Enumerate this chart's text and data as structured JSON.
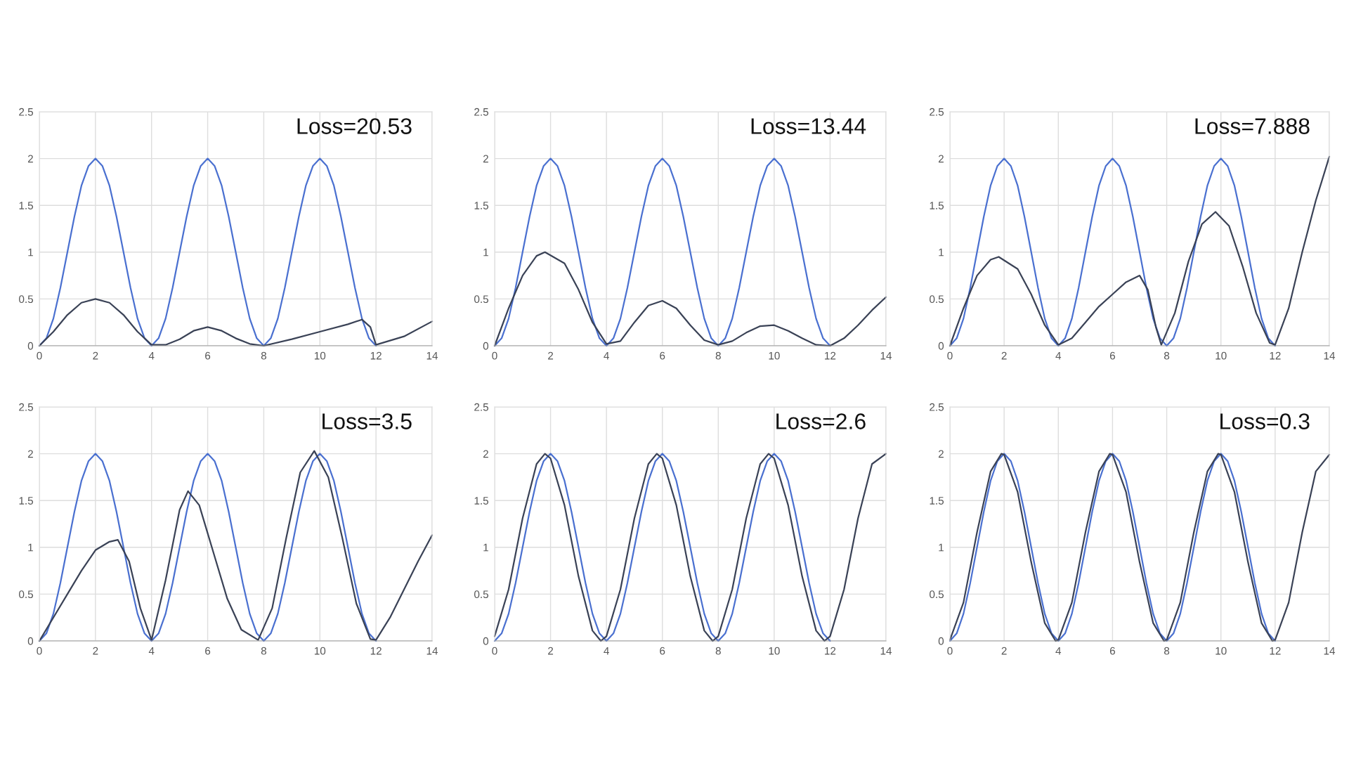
{
  "chart_data": [
    {
      "type": "line",
      "xlim": [
        0,
        14
      ],
      "ylim": [
        0,
        2.5
      ],
      "xticks": [
        0,
        2,
        4,
        6,
        8,
        10,
        12,
        14
      ],
      "yticks": [
        0,
        0.5,
        1,
        1.5,
        2,
        2.5
      ],
      "grid": true,
      "annotations": [
        "Loss=20.53"
      ],
      "series": [
        {
          "color": "#4a70d0",
          "x": [
            0,
            0.25,
            0.5,
            0.75,
            1,
            1.25,
            1.5,
            1.75,
            2,
            2.25,
            2.5,
            2.75,
            3,
            3.25,
            3.5,
            3.75,
            4,
            4.25,
            4.5,
            4.75,
            5,
            5.25,
            5.5,
            5.75,
            6,
            6.25,
            6.5,
            6.75,
            7,
            7.25,
            7.5,
            7.75,
            8,
            8.25,
            8.5,
            8.75,
            9,
            9.25,
            9.5,
            9.75,
            10,
            10.25,
            10.5,
            10.75,
            11,
            11.25,
            11.5,
            11.75,
            12
          ],
          "values": [
            0,
            0.08,
            0.29,
            0.62,
            1,
            1.38,
            1.71,
            1.92,
            2,
            1.92,
            1.71,
            1.38,
            1,
            0.62,
            0.29,
            0.08,
            0,
            0.08,
            0.29,
            0.62,
            1,
            1.38,
            1.71,
            1.92,
            2,
            1.92,
            1.71,
            1.38,
            1,
            0.62,
            0.29,
            0.08,
            0,
            0.08,
            0.29,
            0.62,
            1,
            1.38,
            1.71,
            1.92,
            2,
            1.92,
            1.71,
            1.38,
            1,
            0.62,
            0.29,
            0.08,
            0
          ]
        },
        {
          "color": "#3a4256",
          "x": [
            0,
            0.5,
            1,
            1.5,
            2,
            2.5,
            3,
            3.5,
            4,
            4.5,
            5,
            5.5,
            6,
            6.5,
            7,
            7.5,
            8,
            9,
            10,
            11,
            11.5,
            11.8,
            12,
            13,
            14
          ],
          "values": [
            0,
            0.15,
            0.33,
            0.46,
            0.5,
            0.46,
            0.33,
            0.15,
            0.01,
            0.01,
            0.07,
            0.16,
            0.2,
            0.16,
            0.08,
            0.02,
            0,
            0.07,
            0.15,
            0.23,
            0.28,
            0.2,
            0.01,
            0.1,
            0.26
          ]
        }
      ]
    },
    {
      "type": "line",
      "xlim": [
        0,
        14
      ],
      "ylim": [
        0,
        2.5
      ],
      "xticks": [
        0,
        2,
        4,
        6,
        8,
        10,
        12,
        14
      ],
      "yticks": [
        0,
        0.5,
        1,
        1.5,
        2,
        2.5
      ],
      "grid": true,
      "annotations": [
        "Loss=13.44"
      ],
      "series": [
        {
          "color": "#4a70d0",
          "x": [
            0,
            0.25,
            0.5,
            0.75,
            1,
            1.25,
            1.5,
            1.75,
            2,
            2.25,
            2.5,
            2.75,
            3,
            3.25,
            3.5,
            3.75,
            4,
            4.25,
            4.5,
            4.75,
            5,
            5.25,
            5.5,
            5.75,
            6,
            6.25,
            6.5,
            6.75,
            7,
            7.25,
            7.5,
            7.75,
            8,
            8.25,
            8.5,
            8.75,
            9,
            9.25,
            9.5,
            9.75,
            10,
            10.25,
            10.5,
            10.75,
            11,
            11.25,
            11.5,
            11.75,
            12
          ],
          "values": [
            0,
            0.08,
            0.29,
            0.62,
            1,
            1.38,
            1.71,
            1.92,
            2,
            1.92,
            1.71,
            1.38,
            1,
            0.62,
            0.29,
            0.08,
            0,
            0.08,
            0.29,
            0.62,
            1,
            1.38,
            1.71,
            1.92,
            2,
            1.92,
            1.71,
            1.38,
            1,
            0.62,
            0.29,
            0.08,
            0,
            0.08,
            0.29,
            0.62,
            1,
            1.38,
            1.71,
            1.92,
            2,
            1.92,
            1.71,
            1.38,
            1,
            0.62,
            0.29,
            0.08,
            0
          ]
        },
        {
          "color": "#3a4256",
          "x": [
            0,
            0.5,
            1,
            1.5,
            1.8,
            2.5,
            3,
            3.5,
            4,
            4.5,
            5,
            5.5,
            6,
            6.5,
            7,
            7.5,
            8,
            8.5,
            9,
            9.5,
            10,
            10.5,
            11,
            11.5,
            12,
            12.5,
            13,
            13.5,
            14
          ],
          "values": [
            0,
            0.4,
            0.75,
            0.96,
            1,
            0.88,
            0.6,
            0.25,
            0.02,
            0.05,
            0.25,
            0.43,
            0.48,
            0.4,
            0.22,
            0.06,
            0.01,
            0.05,
            0.14,
            0.21,
            0.22,
            0.16,
            0.08,
            0.01,
            0,
            0.08,
            0.22,
            0.38,
            0.52
          ]
        }
      ]
    },
    {
      "type": "line",
      "xlim": [
        0,
        14
      ],
      "ylim": [
        0,
        2.5
      ],
      "xticks": [
        0,
        2,
        4,
        6,
        8,
        10,
        12,
        14
      ],
      "yticks": [
        0,
        0.5,
        1,
        1.5,
        2,
        2.5
      ],
      "grid": true,
      "annotations": [
        "Loss=7.888"
      ],
      "series": [
        {
          "color": "#4a70d0",
          "x": [
            0,
            0.25,
            0.5,
            0.75,
            1,
            1.25,
            1.5,
            1.75,
            2,
            2.25,
            2.5,
            2.75,
            3,
            3.25,
            3.5,
            3.75,
            4,
            4.25,
            4.5,
            4.75,
            5,
            5.25,
            5.5,
            5.75,
            6,
            6.25,
            6.5,
            6.75,
            7,
            7.25,
            7.5,
            7.75,
            8,
            8.25,
            8.5,
            8.75,
            9,
            9.25,
            9.5,
            9.75,
            10,
            10.25,
            10.5,
            10.75,
            11,
            11.25,
            11.5,
            11.75,
            12
          ],
          "values": [
            0,
            0.08,
            0.29,
            0.62,
            1,
            1.38,
            1.71,
            1.92,
            2,
            1.92,
            1.71,
            1.38,
            1,
            0.62,
            0.29,
            0.08,
            0,
            0.08,
            0.29,
            0.62,
            1,
            1.38,
            1.71,
            1.92,
            2,
            1.92,
            1.71,
            1.38,
            1,
            0.62,
            0.29,
            0.08,
            0,
            0.08,
            0.29,
            0.62,
            1,
            1.38,
            1.71,
            1.92,
            2,
            1.92,
            1.71,
            1.38,
            1,
            0.62,
            0.29,
            0.08,
            0
          ]
        },
        {
          "color": "#3a4256",
          "x": [
            0,
            0.5,
            1,
            1.5,
            1.8,
            2.5,
            3,
            3.5,
            4,
            4.5,
            5,
            5.5,
            6,
            6.5,
            7,
            7.3,
            7.6,
            7.8,
            8.3,
            8.8,
            9.3,
            9.8,
            10.3,
            10.8,
            11.3,
            11.8,
            12,
            12.5,
            13,
            13.5,
            14
          ],
          "values": [
            0,
            0.4,
            0.75,
            0.92,
            0.95,
            0.82,
            0.55,
            0.22,
            0.01,
            0.08,
            0.25,
            0.42,
            0.55,
            0.68,
            0.75,
            0.6,
            0.2,
            0.01,
            0.35,
            0.9,
            1.3,
            1.43,
            1.28,
            0.85,
            0.35,
            0.03,
            0.01,
            0.4,
            1.0,
            1.55,
            2.02
          ]
        }
      ]
    },
    {
      "type": "line",
      "xlim": [
        0,
        14
      ],
      "ylim": [
        0,
        2.5
      ],
      "xticks": [
        0,
        2,
        4,
        6,
        8,
        10,
        12,
        14
      ],
      "yticks": [
        0,
        0.5,
        1,
        1.5,
        2,
        2.5
      ],
      "grid": true,
      "annotations": [
        "Loss=3.5"
      ],
      "series": [
        {
          "color": "#4a70d0",
          "x": [
            0,
            0.25,
            0.5,
            0.75,
            1,
            1.25,
            1.5,
            1.75,
            2,
            2.25,
            2.5,
            2.75,
            3,
            3.25,
            3.5,
            3.75,
            4,
            4.25,
            4.5,
            4.75,
            5,
            5.25,
            5.5,
            5.75,
            6,
            6.25,
            6.5,
            6.75,
            7,
            7.25,
            7.5,
            7.75,
            8,
            8.25,
            8.5,
            8.75,
            9,
            9.25,
            9.5,
            9.75,
            10,
            10.25,
            10.5,
            10.75,
            11,
            11.25,
            11.5,
            11.75,
            12
          ],
          "values": [
            0,
            0.08,
            0.29,
            0.62,
            1,
            1.38,
            1.71,
            1.92,
            2,
            1.92,
            1.71,
            1.38,
            1,
            0.62,
            0.29,
            0.08,
            0,
            0.08,
            0.29,
            0.62,
            1,
            1.38,
            1.71,
            1.92,
            2,
            1.92,
            1.71,
            1.38,
            1,
            0.62,
            0.29,
            0.08,
            0,
            0.08,
            0.29,
            0.62,
            1,
            1.38,
            1.71,
            1.92,
            2,
            1.92,
            1.71,
            1.38,
            1,
            0.62,
            0.29,
            0.08,
            0
          ]
        },
        {
          "color": "#3a4256",
          "x": [
            0,
            0.5,
            1,
            1.5,
            2,
            2.5,
            2.8,
            3.2,
            3.6,
            4,
            4.5,
            5,
            5.3,
            5.7,
            6.2,
            6.7,
            7.2,
            7.8,
            8.3,
            8.8,
            9.3,
            9.8,
            10.3,
            10.8,
            11.3,
            11.8,
            12,
            12.5,
            13,
            13.5,
            14
          ],
          "values": [
            0,
            0.25,
            0.5,
            0.75,
            0.97,
            1.06,
            1.08,
            0.85,
            0.35,
            0.01,
            0.65,
            1.4,
            1.6,
            1.45,
            0.95,
            0.45,
            0.12,
            0.01,
            0.35,
            1.1,
            1.8,
            2.03,
            1.75,
            1.1,
            0.4,
            0.02,
            0.01,
            0.25,
            0.55,
            0.85,
            1.13
          ]
        }
      ]
    },
    {
      "type": "line",
      "xlim": [
        0,
        14
      ],
      "ylim": [
        0,
        2.5
      ],
      "xticks": [
        0,
        2,
        4,
        6,
        8,
        10,
        12,
        14
      ],
      "yticks": [
        0,
        0.5,
        1,
        1.5,
        2,
        2.5
      ],
      "grid": true,
      "annotations": [
        "Loss=2.6"
      ],
      "series": [
        {
          "color": "#4a70d0",
          "x": [
            0,
            0.25,
            0.5,
            0.75,
            1,
            1.25,
            1.5,
            1.75,
            2,
            2.25,
            2.5,
            2.75,
            3,
            3.25,
            3.5,
            3.75,
            4,
            4.25,
            4.5,
            4.75,
            5,
            5.25,
            5.5,
            5.75,
            6,
            6.25,
            6.5,
            6.75,
            7,
            7.25,
            7.5,
            7.75,
            8,
            8.25,
            8.5,
            8.75,
            9,
            9.25,
            9.5,
            9.75,
            10,
            10.25,
            10.5,
            10.75,
            11,
            11.25,
            11.5,
            11.75,
            12
          ],
          "values": [
            0,
            0.08,
            0.29,
            0.62,
            1,
            1.38,
            1.71,
            1.92,
            2,
            1.92,
            1.71,
            1.38,
            1,
            0.62,
            0.29,
            0.08,
            0,
            0.08,
            0.29,
            0.62,
            1,
            1.38,
            1.71,
            1.92,
            2,
            1.92,
            1.71,
            1.38,
            1,
            0.62,
            0.29,
            0.08,
            0,
            0.08,
            0.29,
            0.62,
            1,
            1.38,
            1.71,
            1.92,
            2,
            1.92,
            1.71,
            1.38,
            1,
            0.62,
            0.29,
            0.08,
            0
          ]
        },
        {
          "color": "#3a4256",
          "x": [
            0,
            0.5,
            1,
            1.5,
            1.8,
            2,
            2.5,
            3,
            3.5,
            3.8,
            4,
            4.5,
            5,
            5.5,
            5.8,
            6,
            6.5,
            7,
            7.5,
            7.8,
            8,
            8.5,
            9,
            9.5,
            9.8,
            10,
            10.5,
            11,
            11.5,
            11.8,
            12,
            12.5,
            13,
            13.5,
            14
          ],
          "values": [
            0.05,
            0.55,
            1.31,
            1.89,
            2,
            1.95,
            1.45,
            0.69,
            0.11,
            0,
            0.05,
            0.55,
            1.31,
            1.89,
            2,
            1.95,
            1.45,
            0.69,
            0.11,
            0,
            0.05,
            0.55,
            1.31,
            1.89,
            2,
            1.95,
            1.45,
            0.69,
            0.11,
            0,
            0.05,
            0.55,
            1.31,
            1.89,
            2
          ]
        }
      ]
    },
    {
      "type": "line",
      "xlim": [
        0,
        14
      ],
      "ylim": [
        0,
        2.5
      ],
      "xticks": [
        0,
        2,
        4,
        6,
        8,
        10,
        12,
        14
      ],
      "yticks": [
        0,
        0.5,
        1,
        1.5,
        2,
        2.5
      ],
      "grid": true,
      "annotations": [
        "Loss=0.3"
      ],
      "series": [
        {
          "color": "#4a70d0",
          "x": [
            0,
            0.25,
            0.5,
            0.75,
            1,
            1.25,
            1.5,
            1.75,
            2,
            2.25,
            2.5,
            2.75,
            3,
            3.25,
            3.5,
            3.75,
            4,
            4.25,
            4.5,
            4.75,
            5,
            5.25,
            5.5,
            5.75,
            6,
            6.25,
            6.5,
            6.75,
            7,
            7.25,
            7.5,
            7.75,
            8,
            8.25,
            8.5,
            8.75,
            9,
            9.25,
            9.5,
            9.75,
            10,
            10.25,
            10.5,
            10.75,
            11,
            11.25,
            11.5,
            11.75,
            12
          ],
          "values": [
            0,
            0.08,
            0.29,
            0.62,
            1,
            1.38,
            1.71,
            1.92,
            2,
            1.92,
            1.71,
            1.38,
            1,
            0.62,
            0.29,
            0.08,
            0,
            0.08,
            0.29,
            0.62,
            1,
            1.38,
            1.71,
            1.92,
            2,
            1.92,
            1.71,
            1.38,
            1,
            0.62,
            0.29,
            0.08,
            0,
            0.08,
            0.29,
            0.62,
            1,
            1.38,
            1.71,
            1.92,
            2,
            1.92,
            1.71,
            1.38,
            1,
            0.62,
            0.29,
            0.08,
            0
          ]
        },
        {
          "color": "#3a4256",
          "x": [
            0,
            0.5,
            1,
            1.5,
            1.9,
            2,
            2.5,
            3,
            3.5,
            3.9,
            4,
            4.5,
            5,
            5.5,
            5.9,
            6,
            6.5,
            7,
            7.5,
            7.9,
            8,
            8.5,
            9,
            9.5,
            9.9,
            10,
            10.5,
            11,
            11.5,
            11.9,
            12,
            12.5,
            13,
            13.5,
            14
          ],
          "values": [
            0.01,
            0.41,
            1.16,
            1.81,
            2,
            1.99,
            1.59,
            0.84,
            0.19,
            0,
            0.01,
            0.41,
            1.16,
            1.81,
            2,
            1.99,
            1.59,
            0.84,
            0.19,
            0,
            0.01,
            0.41,
            1.16,
            1.81,
            2,
            1.99,
            1.59,
            0.84,
            0.19,
            0,
            0.01,
            0.41,
            1.16,
            1.81,
            1.99
          ]
        }
      ]
    }
  ]
}
